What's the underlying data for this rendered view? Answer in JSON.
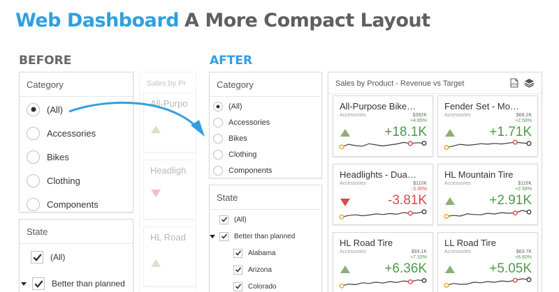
{
  "header": {
    "brand": "Web Dashboard",
    "subtitle": "A More Compact Layout"
  },
  "labels": {
    "before": "BEFORE",
    "after": "AFTER"
  },
  "category": {
    "title": "Category",
    "items": [
      {
        "label": "(All)",
        "selected": true
      },
      {
        "label": "Accessories",
        "selected": false
      },
      {
        "label": "Bikes",
        "selected": false
      },
      {
        "label": "Clothing",
        "selected": false
      },
      {
        "label": "Components",
        "selected": false
      }
    ]
  },
  "state": {
    "title": "State",
    "items": [
      {
        "label": "(All)",
        "checked": true,
        "level": 0,
        "caret": false
      },
      {
        "label": "Better than planned",
        "checked": true,
        "level": 0,
        "caret": true
      },
      {
        "label": "Alabama",
        "checked": true,
        "level": 1,
        "caret": false
      },
      {
        "label": "Arizona",
        "checked": true,
        "level": 1,
        "caret": false
      },
      {
        "label": "Colorado",
        "checked": true,
        "level": 1,
        "caret": false
      }
    ]
  },
  "sales": {
    "title": "Sales by Product - Revenue vs Target",
    "ghost_title": "Sales by Pr",
    "export_icon": "export-pdf-icon",
    "layers_icon": "layers-icon",
    "ghost_names": [
      "All-Purpo",
      "Headligh",
      "HL Road"
    ],
    "cards": [
      {
        "name": "All-Purpose Bike S...",
        "category": "Accessories",
        "target": "$392K",
        "percent": "+4.85%",
        "delta": "+18.1K",
        "trend": "up",
        "spark": [
          0.35,
          0.55,
          0.45,
          0.4,
          0.6,
          0.5,
          0.42,
          0.5,
          0.58,
          0.7,
          0.62,
          0.68,
          0.64
        ]
      },
      {
        "name": "Fender Set - Moun...",
        "category": "Accessories",
        "target": "$68.2K",
        "percent": "+2.58%",
        "delta": "+1.71K",
        "trend": "up",
        "spark": [
          0.3,
          0.42,
          0.55,
          0.48,
          0.52,
          0.6,
          0.56,
          0.62,
          0.58,
          0.65,
          0.72,
          0.66,
          0.62
        ]
      },
      {
        "name": "Headlights - Dual-...",
        "category": "Accessories",
        "target": "$110K",
        "percent": "-3.35%",
        "delta": "-3.81K",
        "trend": "down",
        "spark": [
          0.2,
          0.32,
          0.38,
          0.3,
          0.36,
          0.45,
          0.4,
          0.48,
          0.42,
          0.55,
          0.5,
          0.52,
          0.62
        ]
      },
      {
        "name": "HL Mountain Tire",
        "category": "Accessories",
        "target": "$116K",
        "percent": "+2.58%",
        "delta": "+2.91K",
        "trend": "up",
        "spark": [
          0.25,
          0.32,
          0.28,
          0.45,
          0.4,
          0.38,
          0.5,
          0.44,
          0.55,
          0.5,
          0.52,
          0.72,
          0.6
        ]
      },
      {
        "name": "HL Road Tire",
        "category": "Accessories",
        "target": "$93.1K",
        "percent": "+7.33%",
        "delta": "+6.36K",
        "trend": "up",
        "spark": [
          0.15,
          0.3,
          0.25,
          0.4,
          0.35,
          0.45,
          0.38,
          0.5,
          0.42,
          0.55,
          0.48,
          0.62,
          0.58
        ]
      },
      {
        "name": "LL Road Tire",
        "category": "Accessories",
        "target": "$63.7K",
        "percent": "+8.60%",
        "delta": "+5.05K",
        "trend": "up",
        "spark": [
          0.2,
          0.35,
          0.28,
          0.3,
          0.45,
          0.4,
          0.5,
          0.44,
          0.55,
          0.5,
          0.6,
          0.72,
          0.65
        ]
      }
    ]
  },
  "colors": {
    "brand": "#2f9fe0",
    "positive": "#4f9a4a",
    "positive_marker": "#8fae75",
    "negative": "#d9494c",
    "pct_positive": "#4f9a4a",
    "pct_negative": "#d9494c"
  }
}
